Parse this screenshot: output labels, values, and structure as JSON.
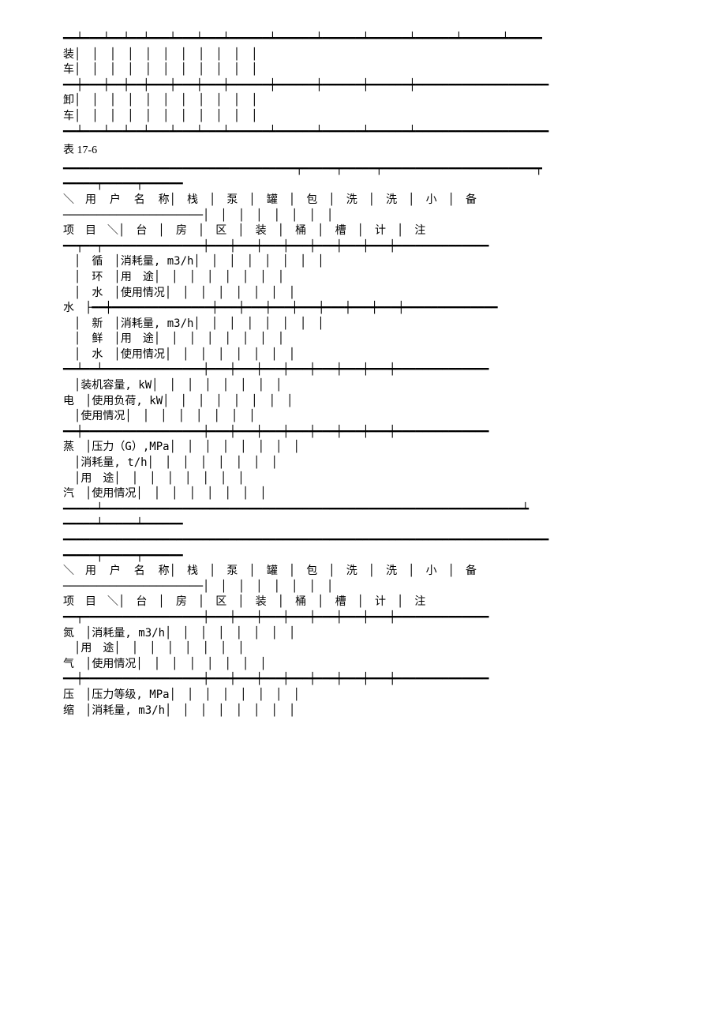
{
  "section1": {
    "top_rule_with_ticks": "━━┷━━━┷━━┷━━┷━━━┷━━━┷━━━┷━━━━━━┷━━━━━━┷━━━━━━┷━━━━━━┷━━━━━━┷━━━━━━┷━━━━━",
    "row1_line1": "装│　│　│　│　│　│　│　│　│　│　│",
    "row1_line2": "车│　│　│　│　│　│　│　│　│　│　│",
    "mid_rule": "━━┿━━━┿━━┿━━┿━━━┿━━━┿━━━┿━━━━━━┿━━━━━━┿━━━━━━┿━━━━━━┿━━━━━━━━━━━━━━━━━━━━",
    "row2_line1": "卸│　│　│　│　│　│　│　│　│　│　│",
    "row2_line2": "车│　│　│　│　│　│　│　│　│　│　│",
    "bottom_rule": "━━┷━━━┷━━┷━━┷━━━┷━━━┷━━━┷━━━━━━┷━━━━━━┷━━━━━━┷━━━━━━┷━━━━━━━━━━━━━━━━━━━━"
  },
  "table_label": "表 17-6",
  "section2": {
    "top_rule": "━━━━━━━━━━━━━━━━━━━━━━━━━━━━━━━━━━━┯━━━━━┯━━━━━┯━━━━━━━━━━━━━━━━━━━━━━━┯",
    "top_rule2": "━━━━━┯━━━━━┯━━━━━━",
    "hdr_line1": "＼　用  户  名  称│　栈　│　泵　│　罐　│　包　│　洗　│　洗　│　小　│　备",
    "hdr_dash": "─────────────────────│　│　│　│　│　│　│　│",
    "hdr_line2": "项　目　＼│　台　│　房　│　区　│　装　│　桶　│　槽　│　计　│　注",
    "rule_a": "━━┯━━┯━━━━━━━━━━━━━━━┿━━━┿━━━┿━━━┿━━━┿━━━┿━━━┿━━━┿━━━━━━━━━━━━━━",
    "water_c1": "　│　循　│消耗量, m3/h│　│　│　│　│　│　│　│",
    "water_c2": "　│　环　│用　途│　│　│　│　│　│　│　│",
    "water_c3": "　│　水　│使用情况│　│　│　│　│　│　│　│",
    "water_mid": "水　├━━┿━━━━━━━━━━━━━━━┿━━━┿━━━┿━━━┿━━━┿━━━┿━━━┿━━━┿━━━━━━━━━━━━━━",
    "water_f1": "　│　新　│消耗量, m3/h│　│　│　│　│　│　│　│",
    "water_f2": "　│　鲜　│用　途│　│　│　│　│　│　│　│",
    "water_f3": "　│　水　│使用情况│　│　│　│　│　│　│　│",
    "rule_b": "━━┷━━┷━━━━━━━━━━━━━━━┿━━━┿━━━┿━━━┿━━━┿━━━┿━━━┿━━━┿━━━━━━━━━━━━━━",
    "elec_1": "　│装机容量, kW│　│　│　│　│　│　│　│",
    "elec_2": "电　│使用负荷, kW│　│　│　│　│　│　│　│",
    "elec_3": "　│使用情况│　│　│　│　│　│　│　│",
    "rule_c": "━━┿━━━━━━━━━━━━━━━━━━┿━━━┿━━━┿━━━┿━━━┿━━━┿━━━┿━━━┿━━━━━━━━━━━━━━",
    "steam_1": "蒸　│压力（G）,MPa│　│　│　│　│　│　│　│",
    "steam_2": "　│消耗量, t/h│　│　│　│　│　│　│　│",
    "steam_3": "　│用　途│　│　│　│　│　│　│　│",
    "steam_4": "汽　│使用情况│　│　│　│　│　│　│　│",
    "rule_d": "━━━━━┷━━━━━━━━━━━━━━━━━━━━━━━━━━━━━━━━━━━━━━━━━━━━━━━━━━━━━━━━━━━━━━━┷",
    "rule_d2": "━━━━━┷━━━━━┷━━━━━━"
  },
  "section3": {
    "top_rule": "━━━━━━━━━━━━━━━━━━━━━━━━━━━━━━━━━━━━━━━━━━━━━━━━━━━━━━━━━━━━━━━━━━━━━━━━━",
    "top_rule2": "━━━━━┯━━━━━┯━━━━━━",
    "hdr_line1": "＼　用  户  名  称│　栈　│　泵　│　罐　│　包　│　洗　│　洗　│　小　│　备",
    "hdr_dash": "─────────────────────│　│　│　│　│　│　│　│",
    "hdr_line2": "项　目　＼│　台　│　房　│　区　│　装　│　桶　│　槽　│　计　│　注",
    "rule_a": "━━┯━━━━━━━━━━━━━━━━━━┿━━━┿━━━┿━━━┿━━━┿━━━┿━━━┿━━━┿━━━━━━━━━━━━━━",
    "n2_1": "氮　│消耗量, m3/h│　│　│　│　│　│　│　│",
    "n2_2": "　│用　途│　│　│　│　│　│　│　│",
    "n2_3": "气　│使用情况│　│　│　│　│　│　│　│",
    "rule_b": "━━┿━━━━━━━━━━━━━━━━━━┿━━━┿━━━┿━━━┿━━━┿━━━┿━━━┿━━━┿━━━━━━━━━━━━━━",
    "air_1": "压　│压力等级, MPa│　│　│　│　│　│　│　│",
    "air_2": "缩　│消耗量, m3/h│　│　│　│　│　│　│　│"
  }
}
